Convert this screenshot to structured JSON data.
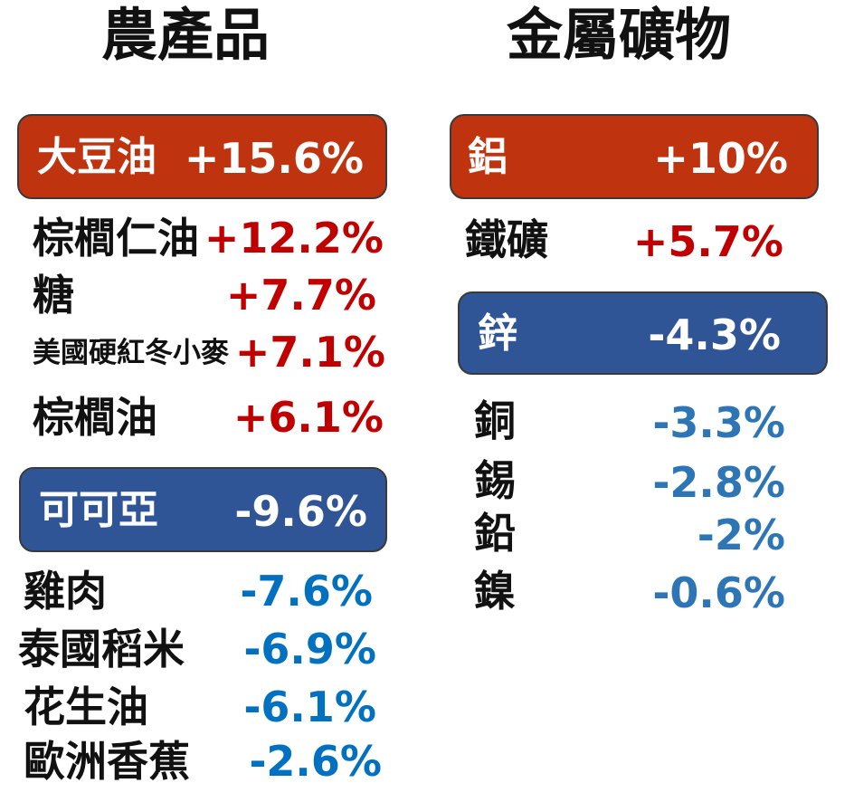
{
  "agri": {
    "title": "農產品",
    "top": {
      "name": "大豆油",
      "value": "+15.6%"
    },
    "gainers": [
      {
        "name": "棕櫚仁油",
        "value": "+12.2%"
      },
      {
        "name": "糖",
        "value": "+7.7%"
      },
      {
        "name": "美國硬紅冬小麥",
        "value": "+7.1%"
      },
      {
        "name": "棕櫚油",
        "value": "+6.1%"
      }
    ],
    "bottom": {
      "name": "可可亞",
      "value": "-9.6%"
    },
    "losers": [
      {
        "name": "雞肉",
        "value": "-7.6%"
      },
      {
        "name": "泰國稻米",
        "value": "-6.9%"
      },
      {
        "name": "花生油",
        "value": "-6.1%"
      },
      {
        "name": "歐洲香蕉",
        "value": "-2.6%"
      }
    ]
  },
  "metals": {
    "title": "金屬礦物",
    "top": {
      "name": "鋁",
      "value": "+10%"
    },
    "gainers": [
      {
        "name": "鐵礦",
        "value": "+5.7%"
      }
    ],
    "bottom": {
      "name": "鋅",
      "value": "-4.3%"
    },
    "losers": [
      {
        "name": "銅",
        "value": "-3.3%"
      },
      {
        "name": "錫",
        "value": "-2.8%"
      },
      {
        "name": "鉛",
        "value": "-2%"
      },
      {
        "name": "鎳",
        "value": "-0.6%"
      }
    ]
  },
  "colors": {
    "positive": "#c00000",
    "negative": "#2e75b6",
    "top_box": "#c0330f",
    "bottom_box": "#2f5597"
  }
}
